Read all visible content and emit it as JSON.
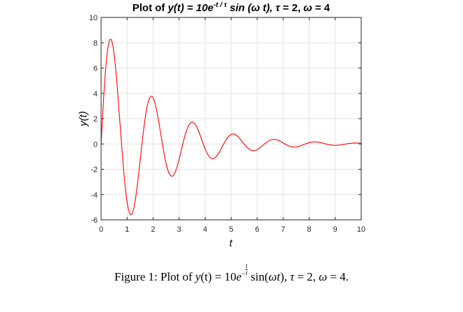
{
  "chart_data": {
    "type": "line",
    "title": {
      "prefix": "Plot of ",
      "lhs": "y(t)",
      "eq": " = 10e",
      "exp": "-t / τ",
      "rest": " sin (ω t), ",
      "tau": "τ",
      "tau_val": " = 2,  ",
      "omega": "ω",
      "omega_val": " = 4"
    },
    "xlabel": "t",
    "ylabel": "y(t)",
    "xlim": [
      0,
      10
    ],
    "ylim": [
      -6,
      10
    ],
    "xticks": [
      "0",
      "1",
      "2",
      "3",
      "4",
      "5",
      "6",
      "7",
      "8",
      "9",
      "10"
    ],
    "yticks": [
      "-6",
      "-4",
      "-2",
      "0",
      "2",
      "4",
      "6",
      "8",
      "10"
    ],
    "grid": true,
    "series": [
      {
        "function": "y = A*exp(-t/tau)*sin(omega*t)",
        "A": 10,
        "tau": 2,
        "omega": 4,
        "t_range": [
          0,
          10
        ],
        "color": "#ff0000"
      }
    ]
  },
  "caption": {
    "label": "Figure 1:",
    "text1": " Plot of ",
    "y": "y",
    "t1": "(t)",
    "eq": " = 10",
    "e": "e",
    "minus": "−",
    "frac_num": "t",
    "frac_den": "τ",
    "sin": " sin(",
    "wt": "ωt",
    "close": "), ",
    "tau": "τ",
    "tau_val": " = 2, ",
    "omega": "ω",
    "omega_val": " = 4."
  }
}
